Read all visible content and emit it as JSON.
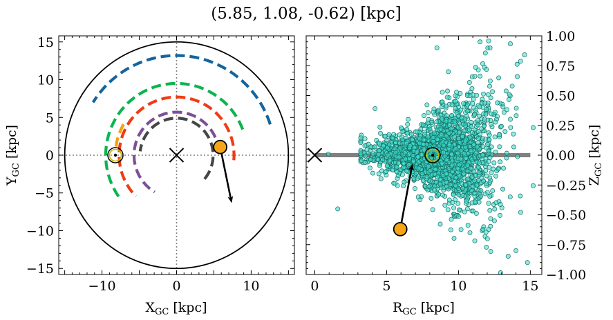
{
  "title": "(5.85, 1.08, -0.62) [kpc]",
  "chart_data": [
    {
      "type": "scatter",
      "panel": "left",
      "xlabel_main": "X",
      "xlabel_sub": "GC",
      "xlabel_unit": " [kpc]",
      "ylabel_main": "Y",
      "ylabel_sub": "GC",
      "ylabel_unit": " [kpc]",
      "xlim": [
        -15.8,
        15.8
      ],
      "ylim": [
        -15.8,
        15.8
      ],
      "xticks": [
        -10,
        0,
        10
      ],
      "yticks": [
        -15,
        -10,
        -5,
        0,
        5,
        10,
        15
      ],
      "outer_circle_radius": 15,
      "galactic_center": [
        0,
        0
      ],
      "sun": [
        -8.2,
        0
      ],
      "object": [
        5.85,
        1.08
      ],
      "velocity_arrow_end": [
        7.3,
        -5.9
      ],
      "spiral_arms": [
        {
          "color": "#1464a0",
          "radius": 13.2,
          "theta_deg": [
            18,
            148
          ]
        },
        {
          "color": "#0cb450",
          "radius": 9.5,
          "theta_deg": [
            21,
            218
          ]
        },
        {
          "color": "#f5a00a",
          "radius": 8.2,
          "theta_deg": [
            150,
            172
          ]
        },
        {
          "color": "#f03c14",
          "radius": 7.7,
          "theta_deg": [
            -5,
            225
          ]
        },
        {
          "color": "#7d5096",
          "radius": 5.7,
          "theta_deg": [
            5,
            240
          ]
        },
        {
          "color": "#464646",
          "radius": 4.9,
          "theta_deg": [
            -40,
            175
          ]
        }
      ]
    },
    {
      "type": "scatter",
      "panel": "right",
      "xlabel_main": "R",
      "xlabel_sub": "GC",
      "xlabel_unit": " [kpc]",
      "ylabel_main": "Z",
      "ylabel_sub": "GC",
      "ylabel_unit": " [kpc]",
      "xlim": [
        -0.6,
        15.8
      ],
      "ylim": [
        -1.0,
        1.0
      ],
      "xticks": [
        0,
        5,
        10,
        15
      ],
      "yticks": [
        -1.0,
        -0.75,
        -0.5,
        -0.25,
        0.0,
        0.25,
        0.5,
        0.75,
        1.0
      ],
      "ytick_labels": [
        "−1.00",
        "−0.75",
        "−0.50",
        "−0.25",
        "0.00",
        "0.25",
        "0.50",
        "0.75",
        "1.00"
      ],
      "disk_line": {
        "x": [
          0,
          15
        ],
        "y": 0,
        "color": "#808080"
      },
      "galactic_center": [
        0,
        0
      ],
      "sun": [
        8.2,
        0
      ],
      "object": [
        5.95,
        -0.62
      ],
      "velocity_arrow_end": [
        6.75,
        -0.1
      ],
      "star_color": "#40e0d0",
      "star_count": 2200,
      "stars_sample": [
        [
          0.95,
          0.01
        ],
        [
          1.6,
          -0.45
        ],
        [
          4.5,
          0.1
        ],
        [
          8.5,
          0.9
        ],
        [
          9.3,
          0.7
        ],
        [
          11.5,
          0.95
        ],
        [
          12.2,
          0.9
        ],
        [
          14.0,
          -0.8
        ],
        [
          14.8,
          -0.9
        ],
        [
          13.6,
          -0.35
        ],
        [
          6.5,
          0.3
        ],
        [
          10.8,
          -0.65
        ],
        [
          12.5,
          -0.55
        ],
        [
          7.2,
          -0.35
        ],
        [
          9.8,
          0.45
        ]
      ]
    }
  ]
}
